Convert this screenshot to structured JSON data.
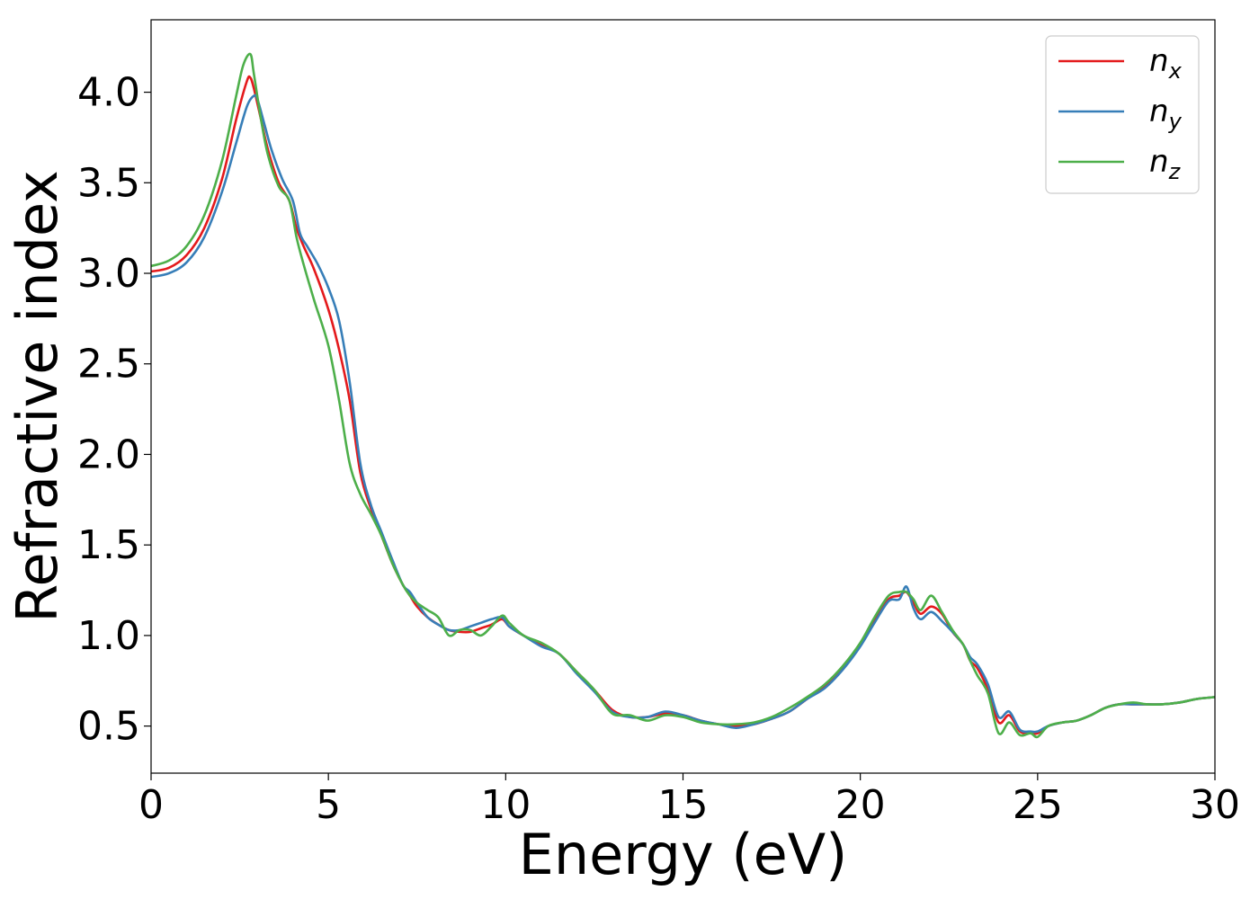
{
  "chart_data": {
    "type": "line",
    "xlabel": "Energy (eV)",
    "ylabel": "Refractive index",
    "xlim": [
      0,
      30
    ],
    "ylim": [
      0.24,
      4.4
    ],
    "xticks": [
      0,
      5,
      10,
      15,
      20,
      25,
      30
    ],
    "xtick_labels": [
      "0",
      "5",
      "10",
      "15",
      "20",
      "25",
      "30"
    ],
    "yticks": [
      0.5,
      1.0,
      1.5,
      2.0,
      2.5,
      3.0,
      3.5,
      4.0
    ],
    "ytick_labels": [
      "0.5",
      "1.0",
      "1.5",
      "2.0",
      "2.5",
      "3.0",
      "3.5",
      "4.0"
    ],
    "grid": false,
    "legend_position": "top-right",
    "series": [
      {
        "name": "nx",
        "legend_main": "n",
        "legend_sub": "x",
        "color": "#e41a1c",
        "x": [
          0,
          0.5,
          1.0,
          1.5,
          2.0,
          2.4,
          2.7,
          2.8,
          2.9,
          3.1,
          3.3,
          3.6,
          3.9,
          4.1,
          4.3,
          4.6,
          5.0,
          5.3,
          5.6,
          5.9,
          6.2,
          6.5,
          6.8,
          7.1,
          7.3,
          7.5,
          7.8,
          8.1,
          8.4,
          8.7,
          9.0,
          9.3,
          9.6,
          9.9,
          10.1,
          10.5,
          11.0,
          11.5,
          12.0,
          12.5,
          13.0,
          13.5,
          14.0,
          14.5,
          15.0,
          15.5,
          16.0,
          16.5,
          17.0,
          17.5,
          18.0,
          18.5,
          19.0,
          19.5,
          20.0,
          20.4,
          20.8,
          21.1,
          21.3,
          21.5,
          21.7,
          22.0,
          22.3,
          22.6,
          22.9,
          23.1,
          23.3,
          23.6,
          23.9,
          24.2,
          24.5,
          24.8,
          25.0,
          25.3,
          25.7,
          26.1,
          26.5,
          26.9,
          27.3,
          27.7,
          28.1,
          28.5,
          29.0,
          29.5,
          30.0
        ],
        "values": [
          3.01,
          3.03,
          3.1,
          3.25,
          3.52,
          3.85,
          4.06,
          4.08,
          4.02,
          3.85,
          3.68,
          3.5,
          3.4,
          3.25,
          3.15,
          3.02,
          2.8,
          2.58,
          2.3,
          1.9,
          1.7,
          1.55,
          1.4,
          1.28,
          1.22,
          1.16,
          1.1,
          1.06,
          1.03,
          1.02,
          1.02,
          1.04,
          1.06,
          1.09,
          1.05,
          1.0,
          0.95,
          0.9,
          0.8,
          0.7,
          0.59,
          0.55,
          0.55,
          0.57,
          0.56,
          0.53,
          0.51,
          0.5,
          0.51,
          0.54,
          0.58,
          0.65,
          0.72,
          0.82,
          0.95,
          1.08,
          1.2,
          1.22,
          1.24,
          1.18,
          1.12,
          1.16,
          1.12,
          1.02,
          0.95,
          0.86,
          0.82,
          0.7,
          0.52,
          0.56,
          0.47,
          0.46,
          0.46,
          0.5,
          0.52,
          0.53,
          0.56,
          0.6,
          0.62,
          0.62,
          0.62,
          0.62,
          0.63,
          0.65,
          0.66
        ]
      },
      {
        "name": "ny",
        "legend_main": "n",
        "legend_sub": "y",
        "color": "#377eb8",
        "x": [
          0,
          0.5,
          1.0,
          1.5,
          2.0,
          2.4,
          2.7,
          2.9,
          3.0,
          3.2,
          3.4,
          3.7,
          4.0,
          4.2,
          4.4,
          4.7,
          5.0,
          5.3,
          5.6,
          5.9,
          6.2,
          6.5,
          6.8,
          7.1,
          7.3,
          7.5,
          7.8,
          8.1,
          8.4,
          8.7,
          9.0,
          9.3,
          9.6,
          9.9,
          10.1,
          10.5,
          11.0,
          11.5,
          12.0,
          12.5,
          13.0,
          13.5,
          14.0,
          14.5,
          15.0,
          15.5,
          16.0,
          16.5,
          17.0,
          17.5,
          18.0,
          18.5,
          19.0,
          19.5,
          20.0,
          20.4,
          20.8,
          21.1,
          21.3,
          21.5,
          21.7,
          22.0,
          22.3,
          22.6,
          22.9,
          23.1,
          23.3,
          23.6,
          23.9,
          24.2,
          24.5,
          24.8,
          25.0,
          25.3,
          25.7,
          26.1,
          26.5,
          26.9,
          27.3,
          27.7,
          28.1,
          28.5,
          29.0,
          29.5,
          30.0
        ],
        "values": [
          2.98,
          3.0,
          3.06,
          3.2,
          3.45,
          3.72,
          3.92,
          3.98,
          3.96,
          3.82,
          3.68,
          3.52,
          3.4,
          3.22,
          3.15,
          3.05,
          2.92,
          2.74,
          2.4,
          1.95,
          1.72,
          1.57,
          1.42,
          1.28,
          1.24,
          1.18,
          1.1,
          1.06,
          1.03,
          1.03,
          1.05,
          1.07,
          1.09,
          1.1,
          1.05,
          1.0,
          0.94,
          0.9,
          0.79,
          0.69,
          0.58,
          0.55,
          0.55,
          0.58,
          0.56,
          0.53,
          0.51,
          0.49,
          0.51,
          0.54,
          0.58,
          0.65,
          0.71,
          0.81,
          0.94,
          1.07,
          1.19,
          1.2,
          1.27,
          1.15,
          1.09,
          1.13,
          1.08,
          1.02,
          0.95,
          0.88,
          0.84,
          0.73,
          0.55,
          0.58,
          0.48,
          0.47,
          0.47,
          0.5,
          0.52,
          0.53,
          0.56,
          0.6,
          0.62,
          0.62,
          0.62,
          0.62,
          0.63,
          0.65,
          0.66
        ]
      },
      {
        "name": "nz",
        "legend_main": "n",
        "legend_sub": "z",
        "color": "#4daf4a",
        "x": [
          0,
          0.5,
          1.0,
          1.5,
          2.0,
          2.4,
          2.6,
          2.8,
          2.9,
          3.1,
          3.3,
          3.6,
          3.9,
          4.1,
          4.3,
          4.6,
          5.0,
          5.3,
          5.6,
          5.9,
          6.2,
          6.5,
          6.8,
          7.1,
          7.3,
          7.5,
          7.8,
          8.1,
          8.4,
          8.7,
          9.0,
          9.3,
          9.6,
          9.9,
          10.1,
          10.5,
          11.0,
          11.5,
          12.0,
          12.5,
          13.0,
          13.5,
          14.0,
          14.5,
          15.0,
          15.5,
          16.0,
          16.5,
          17.0,
          17.5,
          18.0,
          18.5,
          19.0,
          19.5,
          20.0,
          20.4,
          20.8,
          21.1,
          21.3,
          21.5,
          21.7,
          22.0,
          22.3,
          22.6,
          22.9,
          23.1,
          23.3,
          23.6,
          23.9,
          24.2,
          24.5,
          24.8,
          25.0,
          25.3,
          25.7,
          26.1,
          26.5,
          26.9,
          27.3,
          27.7,
          28.1,
          28.5,
          29.0,
          29.5,
          30.0
        ],
        "values": [
          3.04,
          3.07,
          3.15,
          3.32,
          3.62,
          3.98,
          4.15,
          4.21,
          4.1,
          3.85,
          3.65,
          3.48,
          3.4,
          3.2,
          3.05,
          2.85,
          2.6,
          2.3,
          1.95,
          1.78,
          1.67,
          1.55,
          1.4,
          1.28,
          1.22,
          1.18,
          1.14,
          1.1,
          1.0,
          1.03,
          1.03,
          1.0,
          1.05,
          1.11,
          1.07,
          1.0,
          0.96,
          0.9,
          0.8,
          0.7,
          0.57,
          0.56,
          0.53,
          0.56,
          0.55,
          0.52,
          0.51,
          0.51,
          0.52,
          0.55,
          0.6,
          0.66,
          0.73,
          0.83,
          0.96,
          1.1,
          1.22,
          1.24,
          1.24,
          1.2,
          1.14,
          1.22,
          1.13,
          1.03,
          0.95,
          0.86,
          0.78,
          0.68,
          0.46,
          0.52,
          0.45,
          0.46,
          0.44,
          0.5,
          0.52,
          0.53,
          0.56,
          0.6,
          0.62,
          0.63,
          0.62,
          0.62,
          0.63,
          0.65,
          0.66
        ]
      }
    ]
  }
}
